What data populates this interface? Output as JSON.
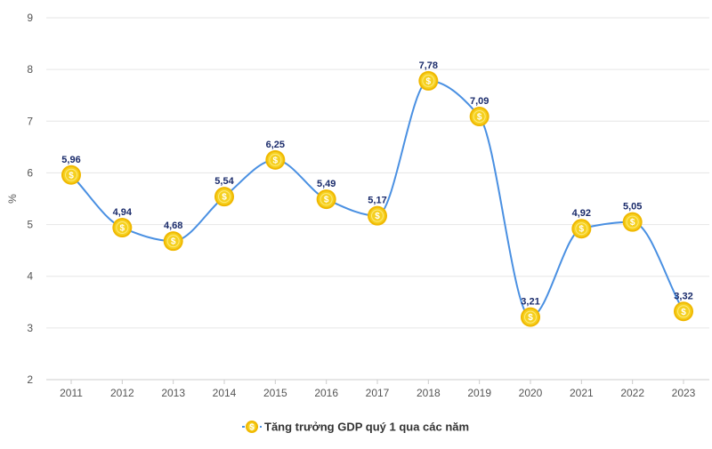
{
  "chart_data": {
    "type": "line",
    "title": "",
    "xlabel": "",
    "ylabel": "%",
    "categories": [
      "2011",
      "2012",
      "2013",
      "2014",
      "2015",
      "2016",
      "2017",
      "2018",
      "2019",
      "2020",
      "2021",
      "2022",
      "2023"
    ],
    "series": [
      {
        "name": "Tăng trưởng GDP quý 1 qua các năm",
        "values": [
          5.96,
          4.94,
          4.68,
          5.54,
          6.25,
          5.49,
          5.17,
          7.78,
          7.09,
          3.21,
          4.92,
          5.05,
          3.32
        ],
        "labels": [
          "5,96",
          "4,94",
          "4,68",
          "5,54",
          "6,25",
          "5,49",
          "5,17",
          "7,78",
          "7,09",
          "3,21",
          "4,92",
          "5,05",
          "3,32"
        ]
      }
    ],
    "ylim": [
      2,
      9
    ],
    "yticks": [
      "2",
      "3",
      "4",
      "5",
      "6",
      "7",
      "8",
      "9"
    ],
    "grid": true,
    "legend": "bottom-center",
    "line_color": "#4a90e2",
    "marker_color": "#f5d020",
    "marker_icon": "coin-icon",
    "marker_glyph": "$"
  }
}
